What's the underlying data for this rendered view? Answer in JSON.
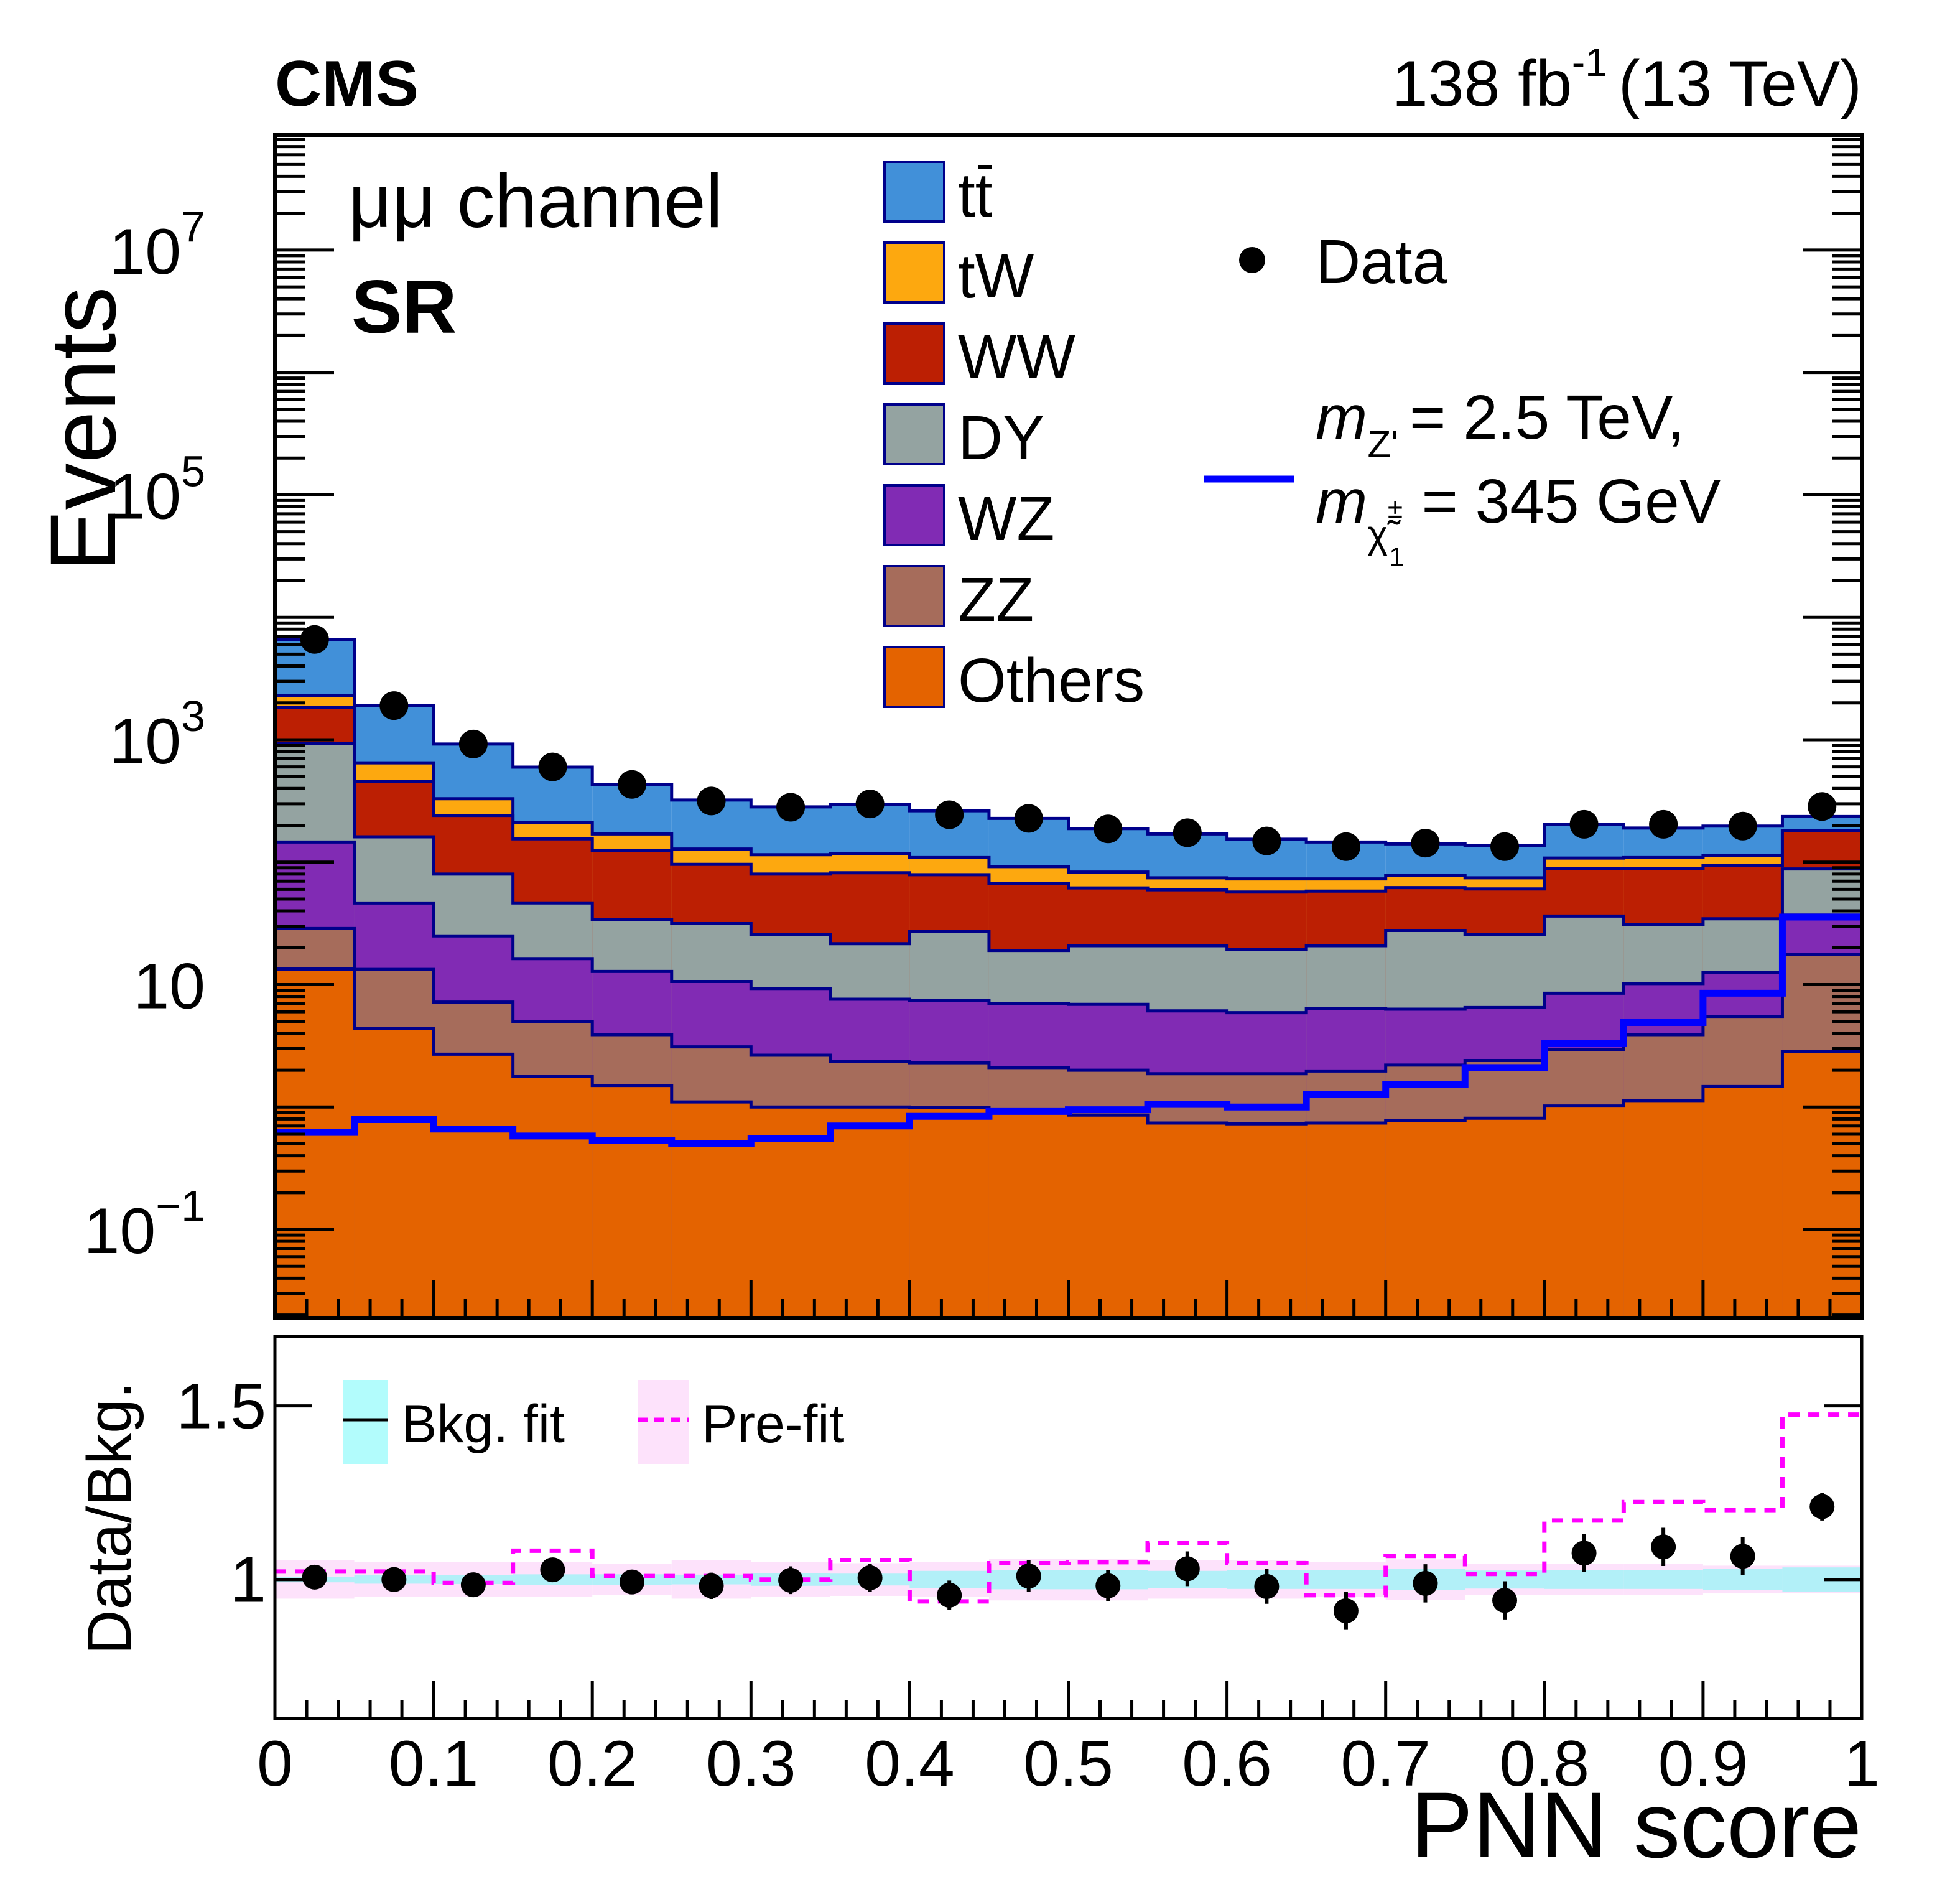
{
  "header": {
    "experiment": "CMS",
    "lumi_text": "138 fb",
    "lumi_exp": "-1",
    "energy_text": "(13 TeV)"
  },
  "annotations": {
    "channel": "μμ channel",
    "region": "SR"
  },
  "colors": {
    "ttbar": "#4190d9",
    "tW": "#fda80f",
    "WW": "#bc1f03",
    "DY": "#94a3a1",
    "WZ": "#812bb4",
    "ZZ": "#a66c5b",
    "Others": "#e46300",
    "stack_outline": "#00008b",
    "signal": "#0000ff",
    "data": "#000000",
    "bkg_fit_band": "#b2f0f8",
    "prefit_band": "#fde2fb",
    "prefit_line": "#ff00ff"
  },
  "chart_data": [
    {
      "type": "bar",
      "subtype": "stacked-histogram-with-data-points",
      "title": "",
      "xlabel": "PNN score",
      "ylabel": "Events",
      "yscale": "log",
      "xlim": [
        0,
        1
      ],
      "ylim": [
        0.019,
        87000000
      ],
      "bin_edges": [
        0,
        0.05,
        0.1,
        0.15,
        0.2,
        0.25,
        0.3,
        0.35,
        0.4,
        0.45,
        0.5,
        0.55,
        0.6,
        0.65,
        0.7,
        0.75,
        0.8,
        0.85,
        0.9,
        0.95,
        1.0
      ],
      "y_tick_labels": [
        {
          "value": 10000000,
          "base": "10",
          "exp": "7"
        },
        {
          "value": 100000,
          "base": "10",
          "exp": "5"
        },
        {
          "value": 1000,
          "base": "10",
          "exp": "3"
        },
        {
          "value": 10,
          "base": "10",
          "exp": ""
        },
        {
          "value": 0.1,
          "base": "10",
          "exp": "−1"
        }
      ],
      "x_tick_labels": [
        "0",
        "0.1",
        "0.2",
        "0.3",
        "0.4",
        "0.5",
        "0.6",
        "0.7",
        "0.8",
        "0.9",
        "1"
      ],
      "stack_order_bottom_to_top": [
        "Others",
        "ZZ",
        "WZ",
        "DY",
        "WW",
        "tW",
        "ttbar"
      ],
      "cumulative_tops": {
        "Others": [
          13.4,
          4.4,
          2.7,
          1.77,
          1.5,
          1.1,
          1.0,
          1.0,
          0.99,
          0.95,
          0.86,
          0.74,
          0.73,
          0.74,
          0.78,
          0.81,
          1.02,
          1.13,
          1.47,
          2.84
        ],
        "ZZ": [
          28.7,
          13.3,
          7.2,
          5.0,
          3.9,
          3.1,
          2.65,
          2.36,
          2.3,
          2.1,
          2.0,
          1.87,
          1.87,
          1.97,
          2.2,
          2.4,
          2.93,
          3.9,
          5.5,
          17.7
        ],
        "WZ": [
          146,
          46.4,
          25,
          16.3,
          12.8,
          10.6,
          9.3,
          7.6,
          7.4,
          7.0,
          6.9,
          6.1,
          5.9,
          6.4,
          6.3,
          6.5,
          8.5,
          10.2,
          12.6,
          37
        ],
        "DY": [
          935,
          161,
          80,
          46.5,
          34,
          31.5,
          25.5,
          21.6,
          27.3,
          19,
          20.8,
          20.8,
          19.5,
          20.8,
          27.7,
          25.8,
          36.3,
          31,
          34.5,
          88
        ],
        "WW": [
          1840,
          456,
          241,
          155,
          125,
          96,
          80,
          82,
          79,
          67,
          61.6,
          59.5,
          57,
          58,
          62,
          60.5,
          89,
          89,
          94,
          180
        ],
        "tW": [
          2290,
          647,
          330,
          211,
          170,
          128,
          115,
          118,
          109,
          92,
          83,
          74.5,
          73,
          73,
          78,
          74.5,
          108,
          109,
          114,
          182
        ],
        "ttbar": [
          6590,
          1900,
          923,
          597,
          432,
          322,
          283,
          297,
          263,
          228,
          188,
          170,
          154,
          146,
          141,
          136,
          204,
          190,
          197,
          236
        ]
      },
      "data_points": [
        6600,
        1900,
        923,
        600,
        432,
        316,
        281,
        299,
        244,
        228,
        187,
        174,
        149,
        134,
        143,
        134,
        204,
        204,
        197,
        285
      ],
      "signal": {
        "name": "mZ' = 2.5 TeV, mχ̃1± = 345 GeV",
        "values": [
          0.62,
          0.79,
          0.66,
          0.58,
          0.53,
          0.5,
          0.55,
          0.7,
          0.84,
          0.92,
          0.95,
          1.05,
          1.0,
          1.27,
          1.52,
          2.1,
          3.3,
          4.9,
          8.5,
          35.6
        ]
      },
      "legend": {
        "placement": "top-center",
        "entries": [
          {
            "key": "ttbar",
            "label": "tt",
            "bar_over_second": true
          },
          {
            "key": "tW",
            "label": "tW"
          },
          {
            "key": "WW",
            "label": "WW"
          },
          {
            "key": "DY",
            "label": "DY"
          },
          {
            "key": "WZ",
            "label": "WZ"
          },
          {
            "key": "ZZ",
            "label": "ZZ"
          },
          {
            "key": "Others",
            "label": "Others"
          }
        ],
        "data_label": "Data",
        "signal_label_line1_m": "m",
        "signal_label_line1_sub": "Z'",
        "signal_label_line1_rest": "= 2.5 TeV,",
        "signal_label_line2_m": "m",
        "signal_label_line2_sub": "χ̃",
        "signal_label_line2_sup": "±",
        "signal_label_line2_subsub": "1",
        "signal_label_line2_rest": "= 345 GeV"
      }
    },
    {
      "type": "scatter",
      "subtype": "ratio-panel",
      "xlabel": "PNN score",
      "ylabel": "Data/Bkg.",
      "xlim": [
        0,
        1
      ],
      "ylim": [
        0.6,
        1.7
      ],
      "y_tick_labels": [
        {
          "value": 1.5,
          "label": "1.5"
        },
        {
          "value": 1.0,
          "label": "1"
        }
      ],
      "ratio_data": [
        1.007,
        1.0,
        0.985,
        1.028,
        0.993,
        0.982,
        0.998,
        1.005,
        0.955,
        1.01,
        0.982,
        1.031,
        0.98,
        0.91,
        0.989,
        0.94,
        1.076,
        1.094,
        1.067,
        1.21
      ],
      "ratio_err": [
        0.012,
        0.02,
        0.025,
        0.03,
        0.035,
        0.038,
        0.04,
        0.04,
        0.042,
        0.045,
        0.045,
        0.05,
        0.05,
        0.055,
        0.055,
        0.055,
        0.055,
        0.055,
        0.055,
        0.04
      ],
      "bkg_fit_band_halfwidth": [
        0.008,
        0.012,
        0.013,
        0.015,
        0.015,
        0.014,
        0.018,
        0.017,
        0.025,
        0.028,
        0.028,
        0.025,
        0.027,
        0.027,
        0.03,
        0.026,
        0.027,
        0.027,
        0.03,
        0.035
      ],
      "prefit_ratio": [
        1.023,
        1.023,
        0.99,
        1.083,
        1.01,
        1.01,
        1.0,
        1.056,
        0.937,
        1.047,
        1.05,
        1.106,
        1.047,
        0.955,
        1.068,
        1.016,
        1.17,
        1.223,
        1.2,
        1.475
      ],
      "prefit_band_halfwidth": [
        0.055,
        0.05,
        0.05,
        0.05,
        0.045,
        0.055,
        0.05,
        0.047,
        0.05,
        0.06,
        0.06,
        0.055,
        0.055,
        0.05,
        0.058,
        0.045,
        0.045,
        0.045,
        0.04,
        0.04
      ],
      "legend": {
        "placement": "top-left",
        "bkg_fit_label": "Bkg. fit",
        "prefit_label": "Pre-fit"
      }
    }
  ]
}
